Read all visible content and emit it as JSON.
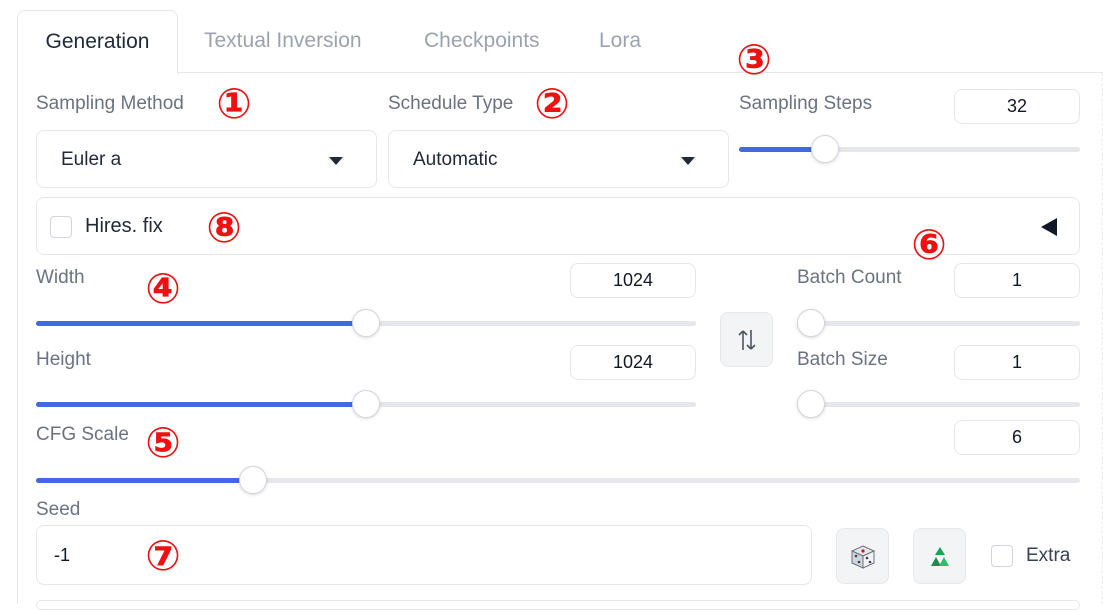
{
  "tabs": [
    {
      "label": "Generation",
      "active": true
    },
    {
      "label": "Textual Inversion",
      "active": false
    },
    {
      "label": "Checkpoints",
      "active": false
    },
    {
      "label": "Lora",
      "active": false
    }
  ],
  "sampling_method": {
    "label": "Sampling Method",
    "value": "Euler a"
  },
  "schedule_type": {
    "label": "Schedule Type",
    "value": "Automatic"
  },
  "sampling_steps": {
    "label": "Sampling Steps",
    "value": "32",
    "fraction": 0.23
  },
  "hires_fix": {
    "label": "Hires. fix",
    "checked": false,
    "icon": "collapse-arrow-icon"
  },
  "width": {
    "label": "Width",
    "value": "1024",
    "fraction": 0.5
  },
  "height": {
    "label": "Height",
    "value": "1024",
    "fraction": 0.5
  },
  "batch_count": {
    "label": "Batch Count",
    "value": "1",
    "fraction": 0.0
  },
  "batch_size": {
    "label": "Batch Size",
    "value": "1",
    "fraction": 0.0
  },
  "cfg_scale": {
    "label": "CFG Scale",
    "value": "6",
    "fraction": 0.2
  },
  "seed": {
    "label": "Seed",
    "value": "-1"
  },
  "extra": {
    "label": "Extra",
    "checked": false
  },
  "buttons": {
    "swap_icon": "swap-dimensions-icon",
    "random_seed_icon": "dice-icon",
    "reuse_seed_icon": "recycle-icon"
  },
  "annotations": [
    "①",
    "②",
    "③",
    "④",
    "⑤",
    "⑥",
    "⑦",
    "⑧"
  ],
  "colors": {
    "accent": "#4169e1",
    "annotation": "#ee1111",
    "border": "#e5e7eb"
  }
}
